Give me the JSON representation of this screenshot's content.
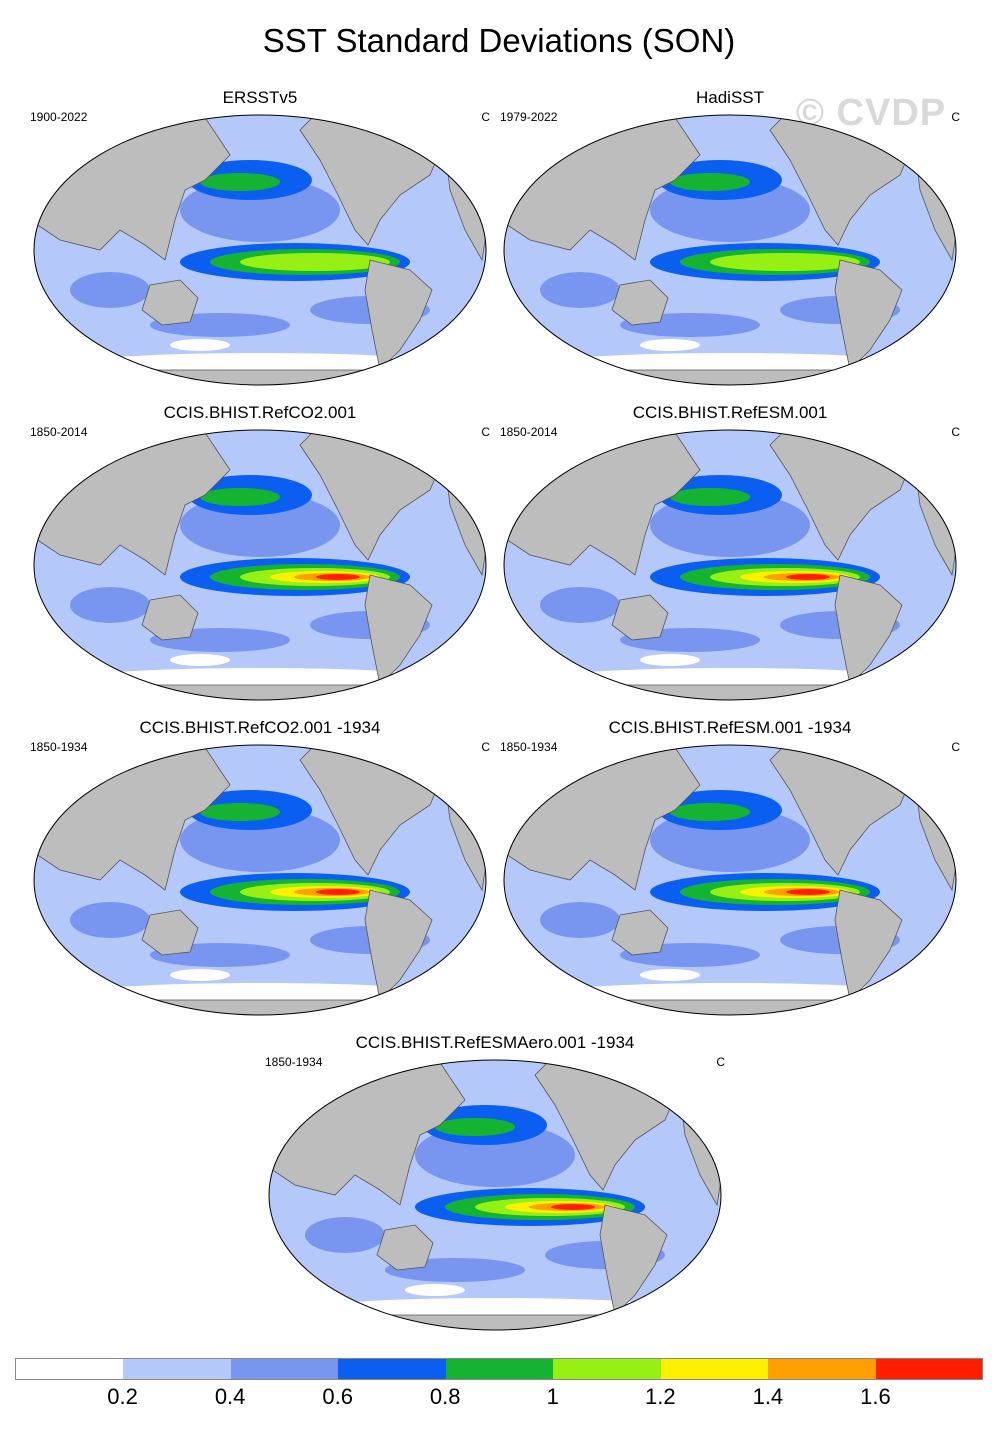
{
  "title": "SST Standard Deviations (SON)",
  "watermark": "© CVDP",
  "panels": [
    {
      "title": "ERSSTv5",
      "years": "1900-2022",
      "unit": "C",
      "enso_strength": 1.1
    },
    {
      "title": "HadiSST",
      "years": "1979-2022",
      "unit": "C",
      "enso_strength": 1.0
    },
    {
      "title": "CCIS.BHIST.RefCO2.001",
      "years": "1850-2014",
      "unit": "C",
      "enso_strength": 1.7
    },
    {
      "title": "CCIS.BHIST.RefESM.001",
      "years": "1850-2014",
      "unit": "C",
      "enso_strength": 1.65
    },
    {
      "title": "CCIS.BHIST.RefCO2.001 -1934",
      "years": "1850-1934",
      "unit": "C",
      "enso_strength": 1.65
    },
    {
      "title": "CCIS.BHIST.RefESM.001 -1934",
      "years": "1850-1934",
      "unit": "C",
      "enso_strength": 1.6
    },
    {
      "title": "CCIS.BHIST.RefESMAero.001 -1934",
      "years": "1850-1934",
      "unit": "C",
      "enso_strength": 1.75
    }
  ],
  "colorbar": {
    "labels": [
      "0.2",
      "0.4",
      "0.6",
      "0.8",
      "1",
      "1.2",
      "1.4",
      "1.6"
    ],
    "levels": [
      0.2,
      0.4,
      0.6,
      0.8,
      1.0,
      1.2,
      1.4,
      1.6
    ],
    "colors": [
      "#ffffff",
      "#b4c8fa",
      "#7896f0",
      "#0a5ff0",
      "#14b432",
      "#96f014",
      "#fff000",
      "#ffa000",
      "#ff1e00"
    ]
  },
  "land_color": "#bdbdbd"
}
